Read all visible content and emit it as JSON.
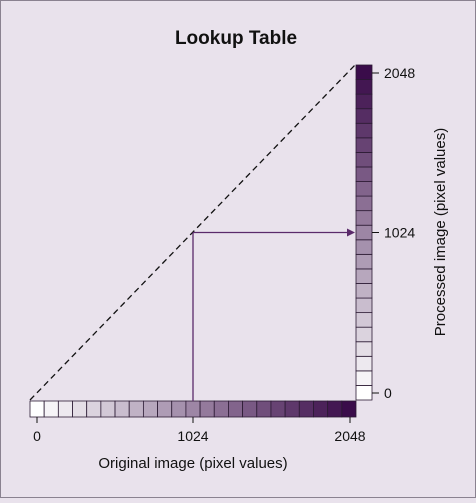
{
  "title": "Lookup Table",
  "x_axis": {
    "label": "Original image (pixel values)",
    "ticks": [
      {
        "value": 0,
        "label": "0"
      },
      {
        "value": 1024,
        "label": "1024"
      },
      {
        "value": 2048,
        "label": "2048"
      }
    ]
  },
  "y_axis": {
    "label": "Processed image (pixel values)",
    "ticks": [
      {
        "value": 0,
        "label": "0"
      },
      {
        "value": 1024,
        "label": "1024"
      },
      {
        "value": 2048,
        "label": "2048"
      }
    ]
  },
  "value_range": [
    0,
    2048
  ],
  "gradient_steps": 23,
  "example_mapping": {
    "input": 1024,
    "output": 1024
  },
  "colors": {
    "background": "#e9e2ec",
    "gradient_start": "#ffffff",
    "gradient_end": "#3a0c4a",
    "arrow_line": "#5a2a6a",
    "identity_line": "#111111",
    "cell_border": "#2b1a33"
  }
}
